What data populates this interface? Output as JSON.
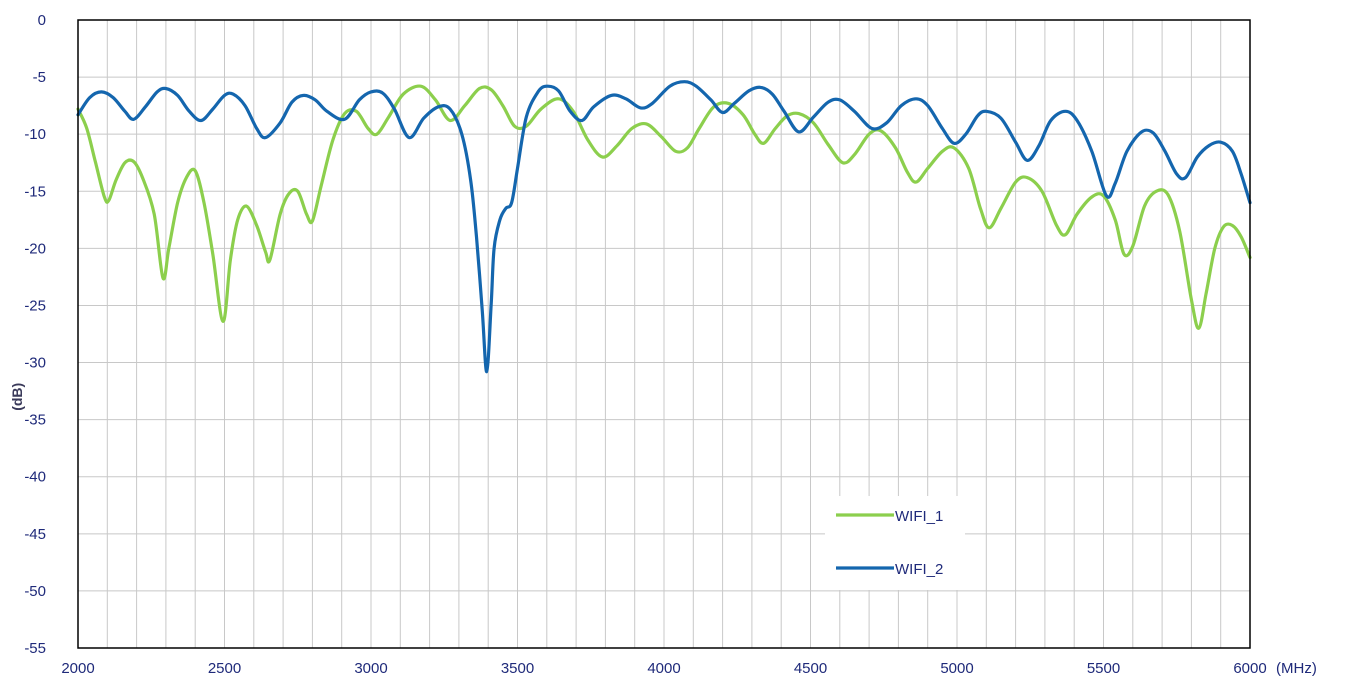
{
  "chart_data": {
    "type": "line",
    "title": "",
    "xlabel": "(MHz)",
    "ylabel": "(dB)",
    "xlim": [
      2000,
      6000
    ],
    "ylim": [
      -55,
      0
    ],
    "x_ticks": [
      "2000",
      "2500",
      "3000",
      "3500",
      "4000",
      "4500",
      "5000",
      "5500",
      "6000"
    ],
    "y_ticks": [
      "0",
      "-5",
      "-10",
      "-15",
      "-20",
      "-25",
      "-30",
      "-35",
      "-40",
      "-45",
      "-50",
      "-55"
    ],
    "grid": true,
    "legend_position": "bottom-right",
    "series": [
      {
        "name": "WIFI_1",
        "color": "#8ccf4d",
        "points": [
          [
            2000,
            -7.8
          ],
          [
            2030,
            -9.5
          ],
          [
            2060,
            -12.5
          ],
          [
            2090,
            -15.5
          ],
          [
            2105,
            -15.8
          ],
          [
            2130,
            -14.0
          ],
          [
            2160,
            -12.5
          ],
          [
            2190,
            -12.4
          ],
          [
            2220,
            -13.8
          ],
          [
            2260,
            -17.0
          ],
          [
            2290,
            -22.6
          ],
          [
            2310,
            -20.0
          ],
          [
            2340,
            -16.0
          ],
          [
            2370,
            -13.8
          ],
          [
            2400,
            -13.2
          ],
          [
            2430,
            -16.0
          ],
          [
            2460,
            -20.5
          ],
          [
            2495,
            -26.4
          ],
          [
            2520,
            -21.0
          ],
          [
            2545,
            -17.5
          ],
          [
            2575,
            -16.3
          ],
          [
            2610,
            -18.0
          ],
          [
            2640,
            -20.3
          ],
          [
            2655,
            -21.0
          ],
          [
            2690,
            -17.0
          ],
          [
            2720,
            -15.2
          ],
          [
            2750,
            -15.0
          ],
          [
            2780,
            -17.0
          ],
          [
            2800,
            -17.6
          ],
          [
            2830,
            -14.5
          ],
          [
            2870,
            -10.5
          ],
          [
            2910,
            -8.2
          ],
          [
            2950,
            -8.0
          ],
          [
            2990,
            -9.5
          ],
          [
            3020,
            -10.0
          ],
          [
            3060,
            -8.5
          ],
          [
            3110,
            -6.5
          ],
          [
            3170,
            -5.8
          ],
          [
            3220,
            -7.0
          ],
          [
            3270,
            -8.8
          ],
          [
            3320,
            -7.5
          ],
          [
            3370,
            -6.0
          ],
          [
            3410,
            -6.1
          ],
          [
            3450,
            -7.5
          ],
          [
            3490,
            -9.3
          ],
          [
            3530,
            -9.3
          ],
          [
            3580,
            -7.8
          ],
          [
            3640,
            -6.9
          ],
          [
            3690,
            -8.0
          ],
          [
            3740,
            -10.5
          ],
          [
            3790,
            -12.0
          ],
          [
            3840,
            -11.0
          ],
          [
            3890,
            -9.5
          ],
          [
            3940,
            -9.1
          ],
          [
            3990,
            -10.2
          ],
          [
            4040,
            -11.5
          ],
          [
            4080,
            -11.2
          ],
          [
            4120,
            -9.5
          ],
          [
            4170,
            -7.6
          ],
          [
            4220,
            -7.3
          ],
          [
            4270,
            -8.3
          ],
          [
            4310,
            -10.0
          ],
          [
            4340,
            -10.8
          ],
          [
            4380,
            -9.5
          ],
          [
            4420,
            -8.4
          ],
          [
            4460,
            -8.2
          ],
          [
            4510,
            -9.0
          ],
          [
            4560,
            -10.9
          ],
          [
            4610,
            -12.5
          ],
          [
            4650,
            -11.8
          ],
          [
            4700,
            -10.0
          ],
          [
            4740,
            -9.7
          ],
          [
            4790,
            -11.2
          ],
          [
            4830,
            -13.3
          ],
          [
            4860,
            -14.2
          ],
          [
            4900,
            -13.0
          ],
          [
            4950,
            -11.5
          ],
          [
            4990,
            -11.2
          ],
          [
            5040,
            -13.0
          ],
          [
            5080,
            -16.5
          ],
          [
            5110,
            -18.2
          ],
          [
            5150,
            -16.5
          ],
          [
            5200,
            -14.2
          ],
          [
            5240,
            -13.8
          ],
          [
            5290,
            -15.0
          ],
          [
            5340,
            -18.0
          ],
          [
            5370,
            -18.8
          ],
          [
            5410,
            -17.0
          ],
          [
            5460,
            -15.5
          ],
          [
            5500,
            -15.4
          ],
          [
            5540,
            -17.5
          ],
          [
            5570,
            -20.5
          ],
          [
            5600,
            -19.8
          ],
          [
            5640,
            -16.3
          ],
          [
            5680,
            -15.0
          ],
          [
            5720,
            -15.3
          ],
          [
            5760,
            -18.5
          ],
          [
            5800,
            -24.5
          ],
          [
            5825,
            -27.0
          ],
          [
            5850,
            -24.0
          ],
          [
            5880,
            -20.0
          ],
          [
            5910,
            -18.1
          ],
          [
            5940,
            -18.0
          ],
          [
            5970,
            -19.0
          ],
          [
            6000,
            -20.8
          ]
        ]
      },
      {
        "name": "WIFI_2",
        "color": "#1466ae",
        "points": [
          [
            2000,
            -8.3
          ],
          [
            2040,
            -6.8
          ],
          [
            2080,
            -6.3
          ],
          [
            2120,
            -6.8
          ],
          [
            2160,
            -8.0
          ],
          [
            2190,
            -8.7
          ],
          [
            2230,
            -7.6
          ],
          [
            2270,
            -6.3
          ],
          [
            2300,
            -6.0
          ],
          [
            2340,
            -6.6
          ],
          [
            2380,
            -8.0
          ],
          [
            2420,
            -8.8
          ],
          [
            2460,
            -7.8
          ],
          [
            2500,
            -6.6
          ],
          [
            2530,
            -6.5
          ],
          [
            2570,
            -7.5
          ],
          [
            2610,
            -9.5
          ],
          [
            2640,
            -10.3
          ],
          [
            2690,
            -9.0
          ],
          [
            2730,
            -7.2
          ],
          [
            2770,
            -6.6
          ],
          [
            2810,
            -7.0
          ],
          [
            2850,
            -8.0
          ],
          [
            2910,
            -8.7
          ],
          [
            2960,
            -7.0
          ],
          [
            3000,
            -6.3
          ],
          [
            3040,
            -6.4
          ],
          [
            3080,
            -7.8
          ],
          [
            3130,
            -10.3
          ],
          [
            3180,
            -8.6
          ],
          [
            3230,
            -7.6
          ],
          [
            3270,
            -7.8
          ],
          [
            3310,
            -10.0
          ],
          [
            3340,
            -14.0
          ],
          [
            3360,
            -19.0
          ],
          [
            3380,
            -25.5
          ],
          [
            3395,
            -30.8
          ],
          [
            3410,
            -25.0
          ],
          [
            3420,
            -20.0
          ],
          [
            3440,
            -17.5
          ],
          [
            3460,
            -16.5
          ],
          [
            3480,
            -16.0
          ],
          [
            3500,
            -13.0
          ],
          [
            3530,
            -8.5
          ],
          [
            3570,
            -6.3
          ],
          [
            3600,
            -5.8
          ],
          [
            3640,
            -6.2
          ],
          [
            3680,
            -8.0
          ],
          [
            3720,
            -8.8
          ],
          [
            3760,
            -7.6
          ],
          [
            3820,
            -6.6
          ],
          [
            3870,
            -6.9
          ],
          [
            3920,
            -7.7
          ],
          [
            3960,
            -7.3
          ],
          [
            4020,
            -5.8
          ],
          [
            4070,
            -5.4
          ],
          [
            4110,
            -5.8
          ],
          [
            4160,
            -7.0
          ],
          [
            4200,
            -8.1
          ],
          [
            4240,
            -7.3
          ],
          [
            4290,
            -6.2
          ],
          [
            4330,
            -5.9
          ],
          [
            4370,
            -6.5
          ],
          [
            4410,
            -8.0
          ],
          [
            4460,
            -9.8
          ],
          [
            4510,
            -8.5
          ],
          [
            4560,
            -7.2
          ],
          [
            4600,
            -7.0
          ],
          [
            4650,
            -8.0
          ],
          [
            4710,
            -9.5
          ],
          [
            4760,
            -9.0
          ],
          [
            4810,
            -7.5
          ],
          [
            4860,
            -6.9
          ],
          [
            4900,
            -7.5
          ],
          [
            4950,
            -9.5
          ],
          [
            4990,
            -10.8
          ],
          [
            5030,
            -10.0
          ],
          [
            5070,
            -8.4
          ],
          [
            5100,
            -8.0
          ],
          [
            5150,
            -8.6
          ],
          [
            5200,
            -10.7
          ],
          [
            5240,
            -12.3
          ],
          [
            5280,
            -11.0
          ],
          [
            5320,
            -8.8
          ],
          [
            5370,
            -8.0
          ],
          [
            5410,
            -8.8
          ],
          [
            5460,
            -11.5
          ],
          [
            5510,
            -15.4
          ],
          [
            5540,
            -14.3
          ],
          [
            5580,
            -11.5
          ],
          [
            5630,
            -9.8
          ],
          [
            5670,
            -9.9
          ],
          [
            5710,
            -11.5
          ],
          [
            5750,
            -13.5
          ],
          [
            5780,
            -13.8
          ],
          [
            5820,
            -12.0
          ],
          [
            5860,
            -11.0
          ],
          [
            5900,
            -10.7
          ],
          [
            5940,
            -11.5
          ],
          [
            5970,
            -13.5
          ],
          [
            6000,
            -16.0
          ]
        ]
      }
    ]
  }
}
